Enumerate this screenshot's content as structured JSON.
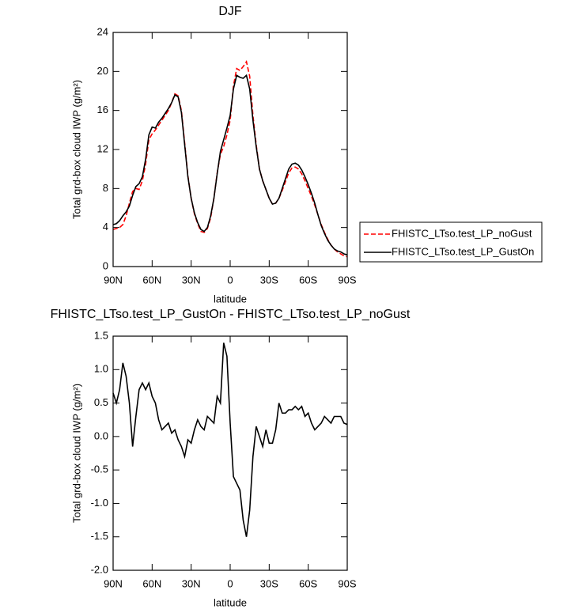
{
  "chart_data": [
    {
      "type": "line",
      "title": "DJF",
      "x_label": "latitude",
      "y_label": "Total grd-box cloud IWP (g/m²)",
      "xlim": [
        90,
        -90
      ],
      "xticks": [
        {
          "value": 90,
          "label": "90N"
        },
        {
          "value": 60,
          "label": "60N"
        },
        {
          "value": 30,
          "label": "30N"
        },
        0,
        {
          "value": -30,
          "label": "30S"
        },
        {
          "value": -60,
          "label": "60S"
        },
        {
          "value": -90,
          "label": "90S"
        }
      ],
      "ylim": [
        0,
        24
      ],
      "yticks": [
        0,
        4,
        8,
        12,
        16,
        20,
        24
      ],
      "legend": "right",
      "x": [
        90,
        87.5,
        85,
        82.5,
        80,
        77.5,
        75,
        72.5,
        70,
        67.5,
        65,
        62.5,
        60,
        57.5,
        55,
        52.5,
        50,
        47.5,
        45,
        42.5,
        40,
        37.5,
        35,
        32.5,
        30,
        27.5,
        25,
        22.5,
        20,
        17.5,
        15,
        12.5,
        10,
        7.5,
        5,
        2.5,
        0,
        -2.5,
        -5,
        -7.5,
        -10,
        -12.5,
        -15,
        -17.5,
        -20,
        -22.5,
        -25,
        -27.5,
        -30,
        -32.5,
        -35,
        -37.5,
        -40,
        -42.5,
        -45,
        -47.5,
        -50,
        -52.5,
        -55,
        -57.5,
        -60,
        -62.5,
        -65,
        -67.5,
        -70,
        -72.5,
        -75,
        -77.5,
        -80,
        -82.5,
        -85,
        -87.5,
        -90
      ],
      "series": [
        {
          "name": "FHISTC_LTso.test_LP_noGust",
          "color": "#ff0000",
          "line_style": "dashed",
          "values": [
            3.8,
            3.9,
            4.0,
            4.3,
            5.2,
            6.5,
            7.7,
            8.0,
            7.9,
            8.8,
            10.5,
            13.0,
            13.6,
            14.0,
            14.5,
            15.0,
            15.5,
            16.0,
            16.8,
            17.7,
            17.5,
            16.0,
            12.7,
            9.3,
            7.0,
            5.4,
            4.4,
            3.6,
            3.5,
            3.9,
            5.0,
            7.0,
            9.6,
            11.5,
            12.3,
            13.5,
            15.0,
            18.5,
            20.3,
            20.1,
            20.5,
            21.0,
            19.5,
            15.5,
            12.5,
            10.0,
            8.8,
            7.9,
            7.0,
            6.4,
            6.5,
            7.0,
            7.8,
            8.7,
            9.6,
            10.1,
            10.2,
            10.0,
            9.5,
            8.8,
            8.0,
            7.2,
            6.3,
            5.3,
            4.3,
            3.5,
            2.8,
            2.2,
            1.8,
            1.5,
            1.3,
            1.1,
            1.0
          ]
        },
        {
          "name": "FHISTC_LTso.test_LP_GustOn",
          "color": "#000000",
          "line_style": "solid",
          "values": [
            4.3,
            4.4,
            4.7,
            5.2,
            5.6,
            6.2,
            7.3,
            8.2,
            8.5,
            9.2,
            11.0,
            13.5,
            14.3,
            14.2,
            14.8,
            15.2,
            15.7,
            16.2,
            16.8,
            17.6,
            17.4,
            15.8,
            12.5,
            9.2,
            7.0,
            5.5,
            4.5,
            3.8,
            3.6,
            4.0,
            5.2,
            7.0,
            9.5,
            11.8,
            13.0,
            14.2,
            15.5,
            18.2,
            19.6,
            19.4,
            19.3,
            19.6,
            18.2,
            15.0,
            12.3,
            10.0,
            8.8,
            7.9,
            7.0,
            6.4,
            6.5,
            7.0,
            8.0,
            9.0,
            10.0,
            10.5,
            10.6,
            10.4,
            9.9,
            9.2,
            8.4,
            7.5,
            6.5,
            5.3,
            4.2,
            3.4,
            2.7,
            2.2,
            1.8,
            1.6,
            1.5,
            1.3,
            1.2
          ]
        }
      ]
    },
    {
      "type": "line",
      "title": "FHISTC_LTso.test_LP_GustOn - FHISTC_LTso.test_LP_noGust",
      "x_label": "latitude",
      "y_label": "Total grd-box cloud IWP (g/m²)",
      "xlim": [
        90,
        -90
      ],
      "xticks": [
        {
          "value": 90,
          "label": "90N"
        },
        {
          "value": 60,
          "label": "60N"
        },
        {
          "value": 30,
          "label": "30N"
        },
        0,
        {
          "value": -30,
          "label": "30S"
        },
        {
          "value": -60,
          "label": "60S"
        },
        {
          "value": -90,
          "label": "90S"
        }
      ],
      "ylim": [
        -2,
        1.5
      ],
      "yticks": [
        {
          "value": -2,
          "label": "-2.0"
        },
        -1.5,
        {
          "value": -1,
          "label": "-1.0"
        },
        -0.5,
        {
          "value": 0,
          "label": "0.0"
        },
        0.5,
        {
          "value": 1,
          "label": "1.0"
        },
        1.5
      ],
      "color": "#000000",
      "x": [
        90,
        87.5,
        85,
        82.5,
        80,
        77.5,
        75,
        72.5,
        70,
        67.5,
        65,
        62.5,
        60,
        57.5,
        55,
        52.5,
        50,
        47.5,
        45,
        42.5,
        40,
        37.5,
        35,
        32.5,
        30,
        27.5,
        25,
        22.5,
        20,
        17.5,
        15,
        12.5,
        10,
        7.5,
        5,
        2.5,
        0,
        -2.5,
        -5,
        -7.5,
        -10,
        -12.5,
        -15,
        -17.5,
        -20,
        -22.5,
        -25,
        -27.5,
        -30,
        -32.5,
        -35,
        -37.5,
        -40,
        -42.5,
        -45,
        -47.5,
        -50,
        -52.5,
        -55,
        -57.5,
        -60,
        -62.5,
        -65,
        -67.5,
        -70,
        -72.5,
        -75,
        -77.5,
        -80,
        -82.5,
        -85,
        -87.5,
        -90
      ],
      "values": [
        0.65,
        0.5,
        0.7,
        1.1,
        0.9,
        0.5,
        -0.15,
        0.3,
        0.7,
        0.8,
        0.7,
        0.8,
        0.6,
        0.5,
        0.25,
        0.1,
        0.15,
        0.2,
        0.05,
        0.1,
        -0.05,
        -0.15,
        -0.3,
        -0.05,
        -0.1,
        0.1,
        0.25,
        0.15,
        0.1,
        0.3,
        0.25,
        0.2,
        0.6,
        0.5,
        1.4,
        1.2,
        0.2,
        -0.6,
        -0.7,
        -0.8,
        -1.25,
        -1.5,
        -1.1,
        -0.3,
        0.15,
        0.0,
        -0.15,
        0.1,
        -0.1,
        -0.1,
        0.1,
        0.5,
        0.35,
        0.35,
        0.4,
        0.4,
        0.45,
        0.4,
        0.45,
        0.3,
        0.35,
        0.2,
        0.1,
        0.15,
        0.2,
        0.3,
        0.25,
        0.2,
        0.3,
        0.3,
        0.3,
        0.2,
        0.18
      ]
    }
  ]
}
